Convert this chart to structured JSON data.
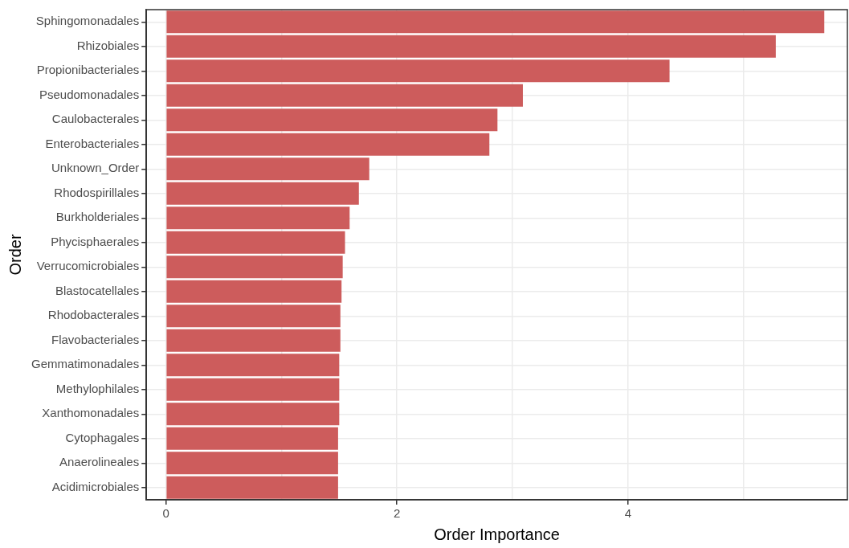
{
  "chart_data": {
    "type": "bar",
    "orientation": "horizontal",
    "xlabel": "Order Importance",
    "ylabel": "Order",
    "categories": [
      "Sphingomonadales",
      "Rhizobiales",
      "Propionibacteriales",
      "Pseudomonadales",
      "Caulobacterales",
      "Enterobacteriales",
      "Unknown_Order",
      "Rhodospirillales",
      "Burkholderiales",
      "Phycisphaerales",
      "Verrucomicrobiales",
      "Blastocatellales",
      "Rhodobacterales",
      "Flavobacteriales",
      "Gemmatimonadales",
      "Methylophilales",
      "Xanthomonadales",
      "Cytophagales",
      "Anaerolineales",
      "Acidimicrobiales"
    ],
    "values": [
      5.7,
      5.28,
      4.36,
      3.09,
      2.87,
      2.8,
      1.76,
      1.67,
      1.59,
      1.55,
      1.53,
      1.52,
      1.51,
      1.51,
      1.5,
      1.5,
      1.5,
      1.49,
      1.49,
      1.49
    ],
    "color": "#cd5c5c",
    "xlim": [
      -0.17,
      5.9
    ],
    "xticks": [
      0,
      {
        "value": 1,
        "label": null
      },
      2,
      {
        "value": 3,
        "label": null
      },
      4,
      {
        "value": 5,
        "label": null
      }
    ],
    "grid": true
  }
}
